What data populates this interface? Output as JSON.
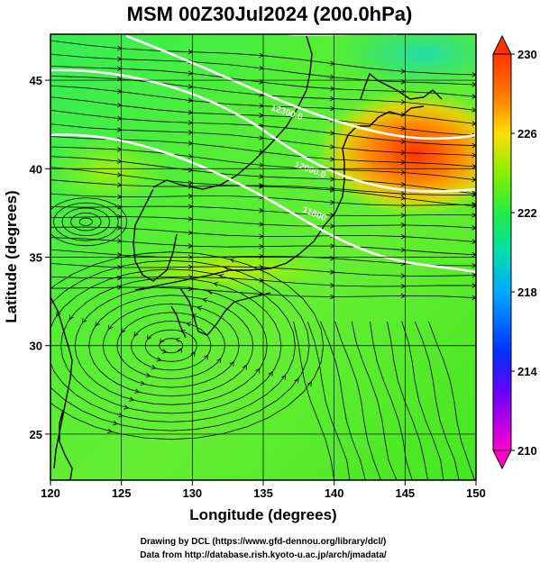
{
  "title": "MSM 00Z30Jul2024 (200.0hPa)",
  "map": {
    "xlabel": "Longitude (degrees)",
    "ylabel": "Latitude  (degrees)",
    "x_ticks": [
      "120",
      "125",
      "130",
      "135",
      "140",
      "145",
      "150"
    ],
    "y_ticks": [
      "25",
      "30",
      "35",
      "40",
      "45"
    ],
    "lon_range": [
      120,
      150
    ],
    "lat_range": [
      22.4,
      47.6
    ],
    "contour_labels": [
      "12300.0",
      "12000.0",
      "11800"
    ]
  },
  "colorbar": {
    "labels": [
      "230",
      "226",
      "222",
      "218",
      "214",
      "210"
    ],
    "range": [
      210,
      230
    ],
    "colors": [
      "#ff00ff",
      "#0000ff",
      "#00ccff",
      "#00ff66",
      "#aaff00",
      "#ff9900",
      "#ff0000"
    ]
  },
  "credits": {
    "line1": "Drawing by DCL (https://www.gfd-dennou.org/library/dcl/)",
    "line2": "Data from http://database.rish.kyoto-u.ac.jp/arch/jmadata/"
  }
}
